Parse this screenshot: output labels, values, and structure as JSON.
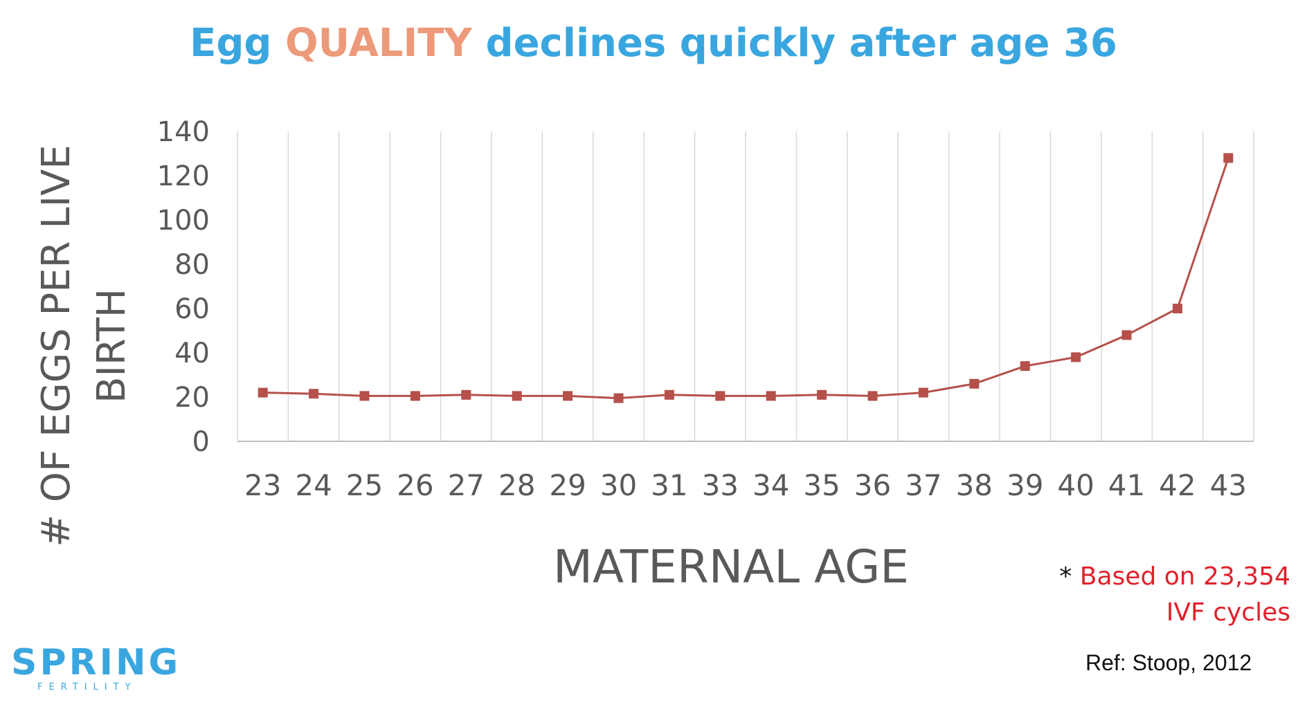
{
  "title": {
    "part1": "Egg ",
    "part2": "QUALITY",
    "part3": " declines quickly after age 36",
    "color_main": "#3aa6df",
    "color_highlight": "#ec9a7a"
  },
  "chart_data": {
    "type": "line",
    "categories": [
      "23",
      "24",
      "25",
      "26",
      "27",
      "28",
      "29",
      "30",
      "31",
      "33",
      "34",
      "35",
      "36",
      "37",
      "38",
      "39",
      "40",
      "41",
      "42",
      "43"
    ],
    "series": [
      {
        "values": [
          22,
          21.5,
          20.5,
          20.5,
          21,
          20.5,
          20.5,
          19.5,
          21,
          20.5,
          20.5,
          21,
          20.5,
          22,
          26,
          34,
          38,
          48,
          60,
          128
        ],
        "color": "#b5504a",
        "marker": "square"
      }
    ],
    "xlabel": "MATERNAL AGE",
    "ylabel_line1": "# OF EGGS PER LIVE",
    "ylabel_line2": "BIRTH",
    "ylim": [
      0,
      140
    ],
    "yticks": [
      "0",
      "20",
      "40",
      "60",
      "80",
      "100",
      "120",
      "140"
    ],
    "grid": "vertical",
    "axis_color": "#595959"
  },
  "footnote": {
    "star": "* ",
    "line1": "Based on 23,354",
    "line2": "IVF cycles",
    "color": "#e0202a"
  },
  "reference": "Ref: Stoop, 2012",
  "logo": {
    "word": "SPRING",
    "sub": "FERTILITY",
    "color": "#3aa6df"
  }
}
